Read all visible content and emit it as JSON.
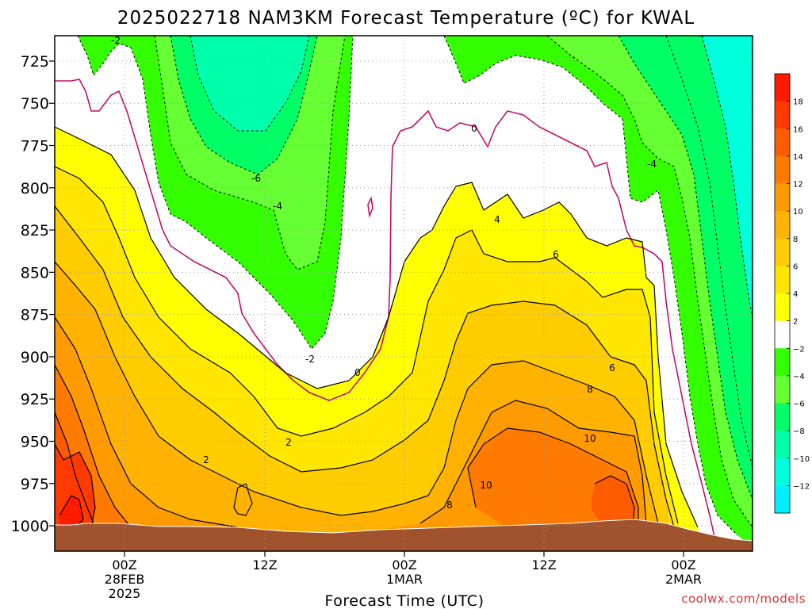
{
  "title": "2025022718 NAM3KM Forecast Temperature (ºC) for KWAL",
  "credit": "coolwx.com/models",
  "chart_data": {
    "type": "heatmap",
    "title": "2025022718 NAM3KM Forecast Temperature (ºC) for KWAL",
    "xlabel": "Forecast Time (UTC)",
    "ylabel": "",
    "y_scale": "pressure, inverted",
    "ylim": [
      1015,
      710
    ],
    "yticks": [
      "725",
      "750",
      "775",
      "800",
      "825",
      "850",
      "875",
      "900",
      "925",
      "950",
      "975",
      "1000"
    ],
    "xticks": [
      {
        "label": "00Z",
        "sub1": "28FEB",
        "sub2": "2025"
      },
      {
        "label": "12Z",
        "sub1": "",
        "sub2": ""
      },
      {
        "label": "00Z",
        "sub1": "1MAR",
        "sub2": ""
      },
      {
        "label": "12Z",
        "sub1": "",
        "sub2": ""
      },
      {
        "label": "00Z",
        "sub1": "2MAR",
        "sub2": ""
      }
    ],
    "grid": true,
    "colorbar": {
      "labels": [
        "18",
        "16",
        "14",
        "12",
        "10",
        "8",
        "6",
        "4",
        "2",
        "−2",
        "−4",
        "−6",
        "−8",
        "−10",
        "−12"
      ],
      "colors": [
        "#ff1a00",
        "#ff3a00",
        "#ff5c00",
        "#ff7a00",
        "#ff9a00",
        "#ffb300",
        "#ffcc00",
        "#ffe600",
        "#ffff00",
        "#ffffff",
        "#33ff00",
        "#66ff33",
        "#00ff66",
        "#00ffaa",
        "#00ffdd",
        "#00eeff"
      ]
    },
    "contour_labels": [
      "-2",
      "-6",
      "-4",
      "0",
      "2",
      "4",
      "-4",
      "-2",
      "0",
      "2",
      "6",
      "8",
      "10",
      "6",
      "8",
      "10"
    ]
  },
  "colors": {
    "ground": "#a0522d",
    "zero_line": "#c0106a",
    "warm_line": "#000000"
  }
}
